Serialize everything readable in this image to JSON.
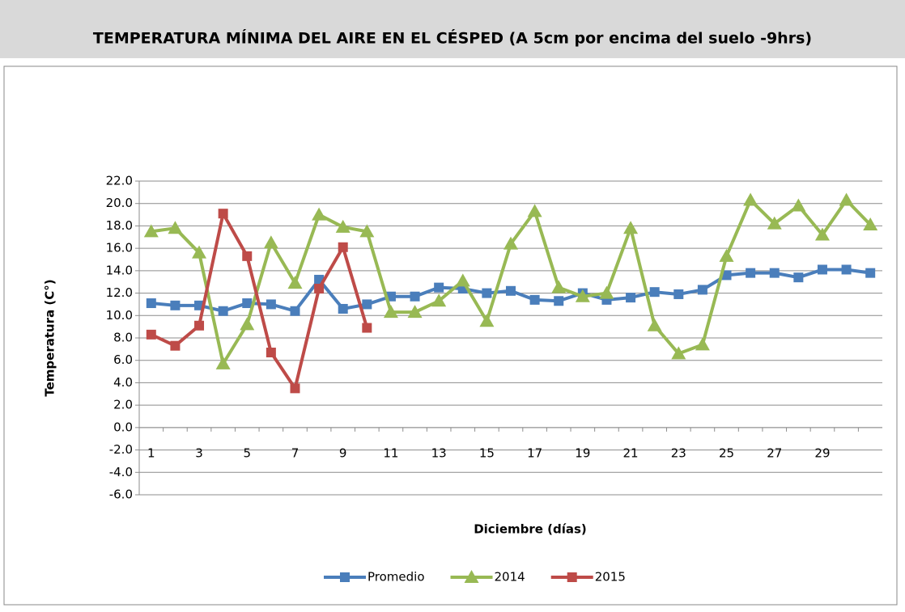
{
  "chart_data": {
    "type": "line",
    "title": "TEMPERATURA MÍNIMA DEL AIRE EN EL CÉSPED (A 5cm por encima del suelo -9hrs)",
    "x_label": "Diciembre (días)",
    "y_label": "Temperatura (C°)",
    "categories": [
      "1",
      null,
      "3",
      null,
      "5",
      null,
      "7",
      null,
      "9",
      null,
      "11",
      null,
      "13",
      null,
      "15",
      null,
      "17",
      null,
      "19",
      null,
      "21",
      null,
      "23",
      null,
      "25",
      null,
      "27",
      null,
      "29",
      null,
      null
    ],
    "series": [
      {
        "name": "Promedio",
        "color": "#4a7ebb",
        "marker": "square",
        "values": [
          11.1,
          10.9,
          10.9,
          10.4,
          11.1,
          11.0,
          10.4,
          13.2,
          10.6,
          11.0,
          11.7,
          11.7,
          12.5,
          12.4,
          12.0,
          12.2,
          11.4,
          11.3,
          12.0,
          11.4,
          11.6,
          12.1,
          11.9,
          12.3,
          13.6,
          13.8,
          13.8,
          13.4,
          14.1,
          14.1,
          13.8
        ]
      },
      {
        "name": "2014",
        "color": "#98b954",
        "marker": "triangle",
        "values": [
          17.5,
          17.8,
          15.6,
          5.7,
          9.2,
          16.5,
          12.9,
          19.0,
          17.9,
          17.5,
          10.3,
          10.3,
          11.3,
          13.1,
          9.5,
          16.4,
          19.3,
          12.5,
          11.7,
          12.0,
          17.8,
          9.1,
          6.6,
          7.4,
          15.3,
          20.3,
          18.2,
          19.8,
          17.2,
          20.3,
          18.1
        ]
      },
      {
        "name": "2015",
        "color": "#be4b48",
        "marker": "square",
        "values": [
          8.3,
          7.3,
          9.1,
          19.1,
          15.3,
          6.7,
          3.5,
          12.4,
          16.1,
          8.9,
          null,
          null,
          null,
          null,
          null,
          null,
          null,
          null,
          null,
          null,
          null,
          null,
          null,
          null,
          null,
          null,
          null,
          null,
          null,
          null,
          null
        ]
      }
    ],
    "ylim": [
      -6,
      22
    ],
    "yticks": [
      {
        "value": -6,
        "label": "-6.0"
      },
      {
        "value": -4,
        "label": "-4.0"
      },
      {
        "value": -2,
        "label": "-2.0"
      },
      {
        "value": 0,
        "label": "0.0"
      },
      {
        "value": 2,
        "label": "2.0"
      },
      {
        "value": 4,
        "label": "4.0"
      },
      {
        "value": 6,
        "label": "6.0"
      },
      {
        "value": 8,
        "label": "8.0"
      },
      {
        "value": 10,
        "label": "10.0"
      },
      {
        "value": 12,
        "label": "12.0"
      },
      {
        "value": 14,
        "label": "14.0"
      },
      {
        "value": 16,
        "label": "16.0"
      },
      {
        "value": 18,
        "label": "18.0"
      },
      {
        "value": 20,
        "label": "20.0"
      },
      {
        "value": 22,
        "label": "22.0"
      }
    ],
    "grid": true,
    "legend": "bottom"
  }
}
